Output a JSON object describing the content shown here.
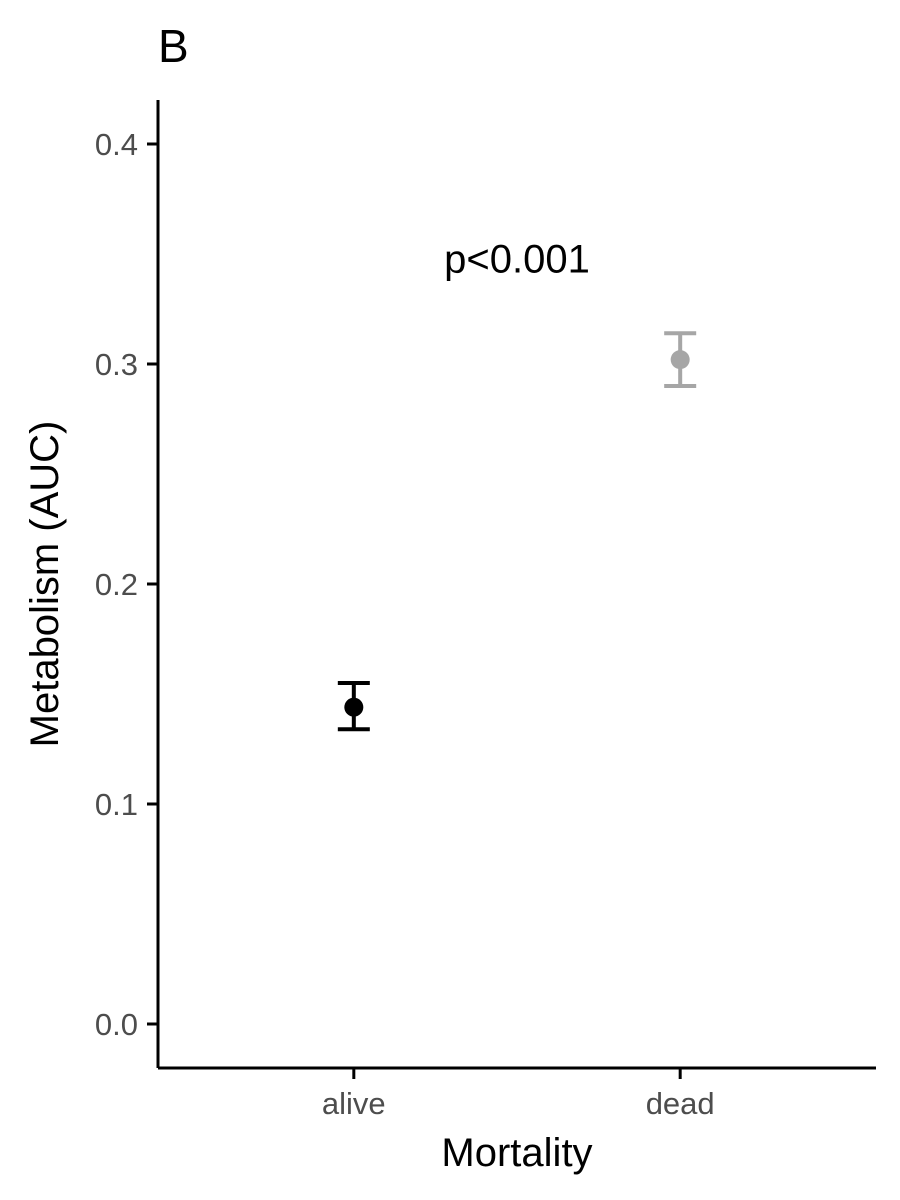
{
  "panel_label": "B",
  "chart_data": {
    "type": "scatter",
    "xlabel": "Mortality",
    "ylabel": "Metabolism (AUC)",
    "categories": [
      "alive",
      "dead"
    ],
    "points": [
      {
        "category": "alive",
        "mean": 0.144,
        "lower": 0.134,
        "upper": 0.155,
        "color": "#000000"
      },
      {
        "category": "dead",
        "mean": 0.302,
        "lower": 0.29,
        "upper": 0.314,
        "color": "#a6a6a6"
      }
    ],
    "ylim": [
      -0.02,
      0.42
    ],
    "yticks": [
      "0.0",
      "0.1",
      "0.2",
      "0.3",
      "0.4"
    ],
    "annotation": "p<0.001",
    "annotation_position": {
      "category_index": 0.5,
      "y": 0.348
    },
    "grid": false,
    "legend": "none"
  }
}
